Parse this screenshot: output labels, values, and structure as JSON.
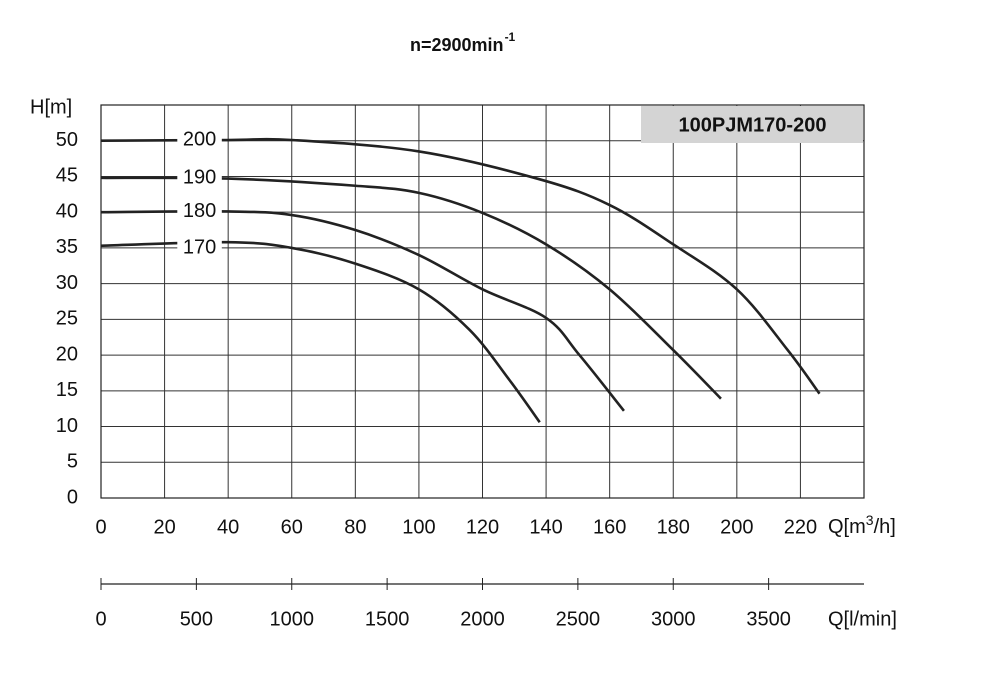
{
  "chart_data": {
    "type": "line",
    "title": "n=2900min",
    "title_superscript": "-1",
    "model_label": "100PJM170-200",
    "y_label": "H[m]",
    "x_label_parts": [
      "Q[m",
      "3",
      "/h]"
    ],
    "x2_label": "Q[l/min]",
    "xlim": [
      0,
      240
    ],
    "xticks": [
      0,
      20,
      40,
      60,
      80,
      100,
      120,
      140,
      160,
      180,
      200,
      220
    ],
    "ylim": [
      0,
      55
    ],
    "yticks": [
      0,
      5,
      10,
      15,
      20,
      25,
      30,
      35,
      40,
      45,
      50
    ],
    "x2lim": [
      0,
      4000
    ],
    "x2ticks": [
      0,
      500,
      1000,
      1500,
      2000,
      2500,
      3000,
      3500
    ],
    "grid": true,
    "series": [
      {
        "name": "200",
        "color": "#222222",
        "x": [
          0,
          40,
          60,
          100,
          138,
          160,
          180,
          200,
          216,
          226
        ],
        "values": [
          50,
          50.1,
          50.1,
          48.5,
          44.6,
          41,
          35.5,
          29.2,
          20.7,
          14.6
        ]
      },
      {
        "name": "190",
        "color": "#222222",
        "x": [
          0,
          40,
          80,
          100,
          120,
          140,
          160,
          180,
          195
        ],
        "values": [
          44.8,
          44.7,
          43.7,
          42.7,
          39.9,
          35.5,
          29.2,
          20.7,
          13.9
        ]
      },
      {
        "name": "180",
        "color": "#222222",
        "x": [
          0,
          40,
          60,
          80,
          100,
          120,
          140,
          150.5,
          164.5
        ],
        "values": [
          40,
          40.1,
          39.6,
          37.5,
          34,
          29.2,
          25.2,
          20,
          12.2
        ]
      },
      {
        "name": "170",
        "color": "#222222",
        "x": [
          0,
          40,
          60,
          80,
          100,
          116,
          128.5,
          138
        ],
        "values": [
          35.3,
          35.8,
          35,
          32.8,
          29.2,
          23.5,
          16.5,
          10.6
        ]
      }
    ]
  }
}
